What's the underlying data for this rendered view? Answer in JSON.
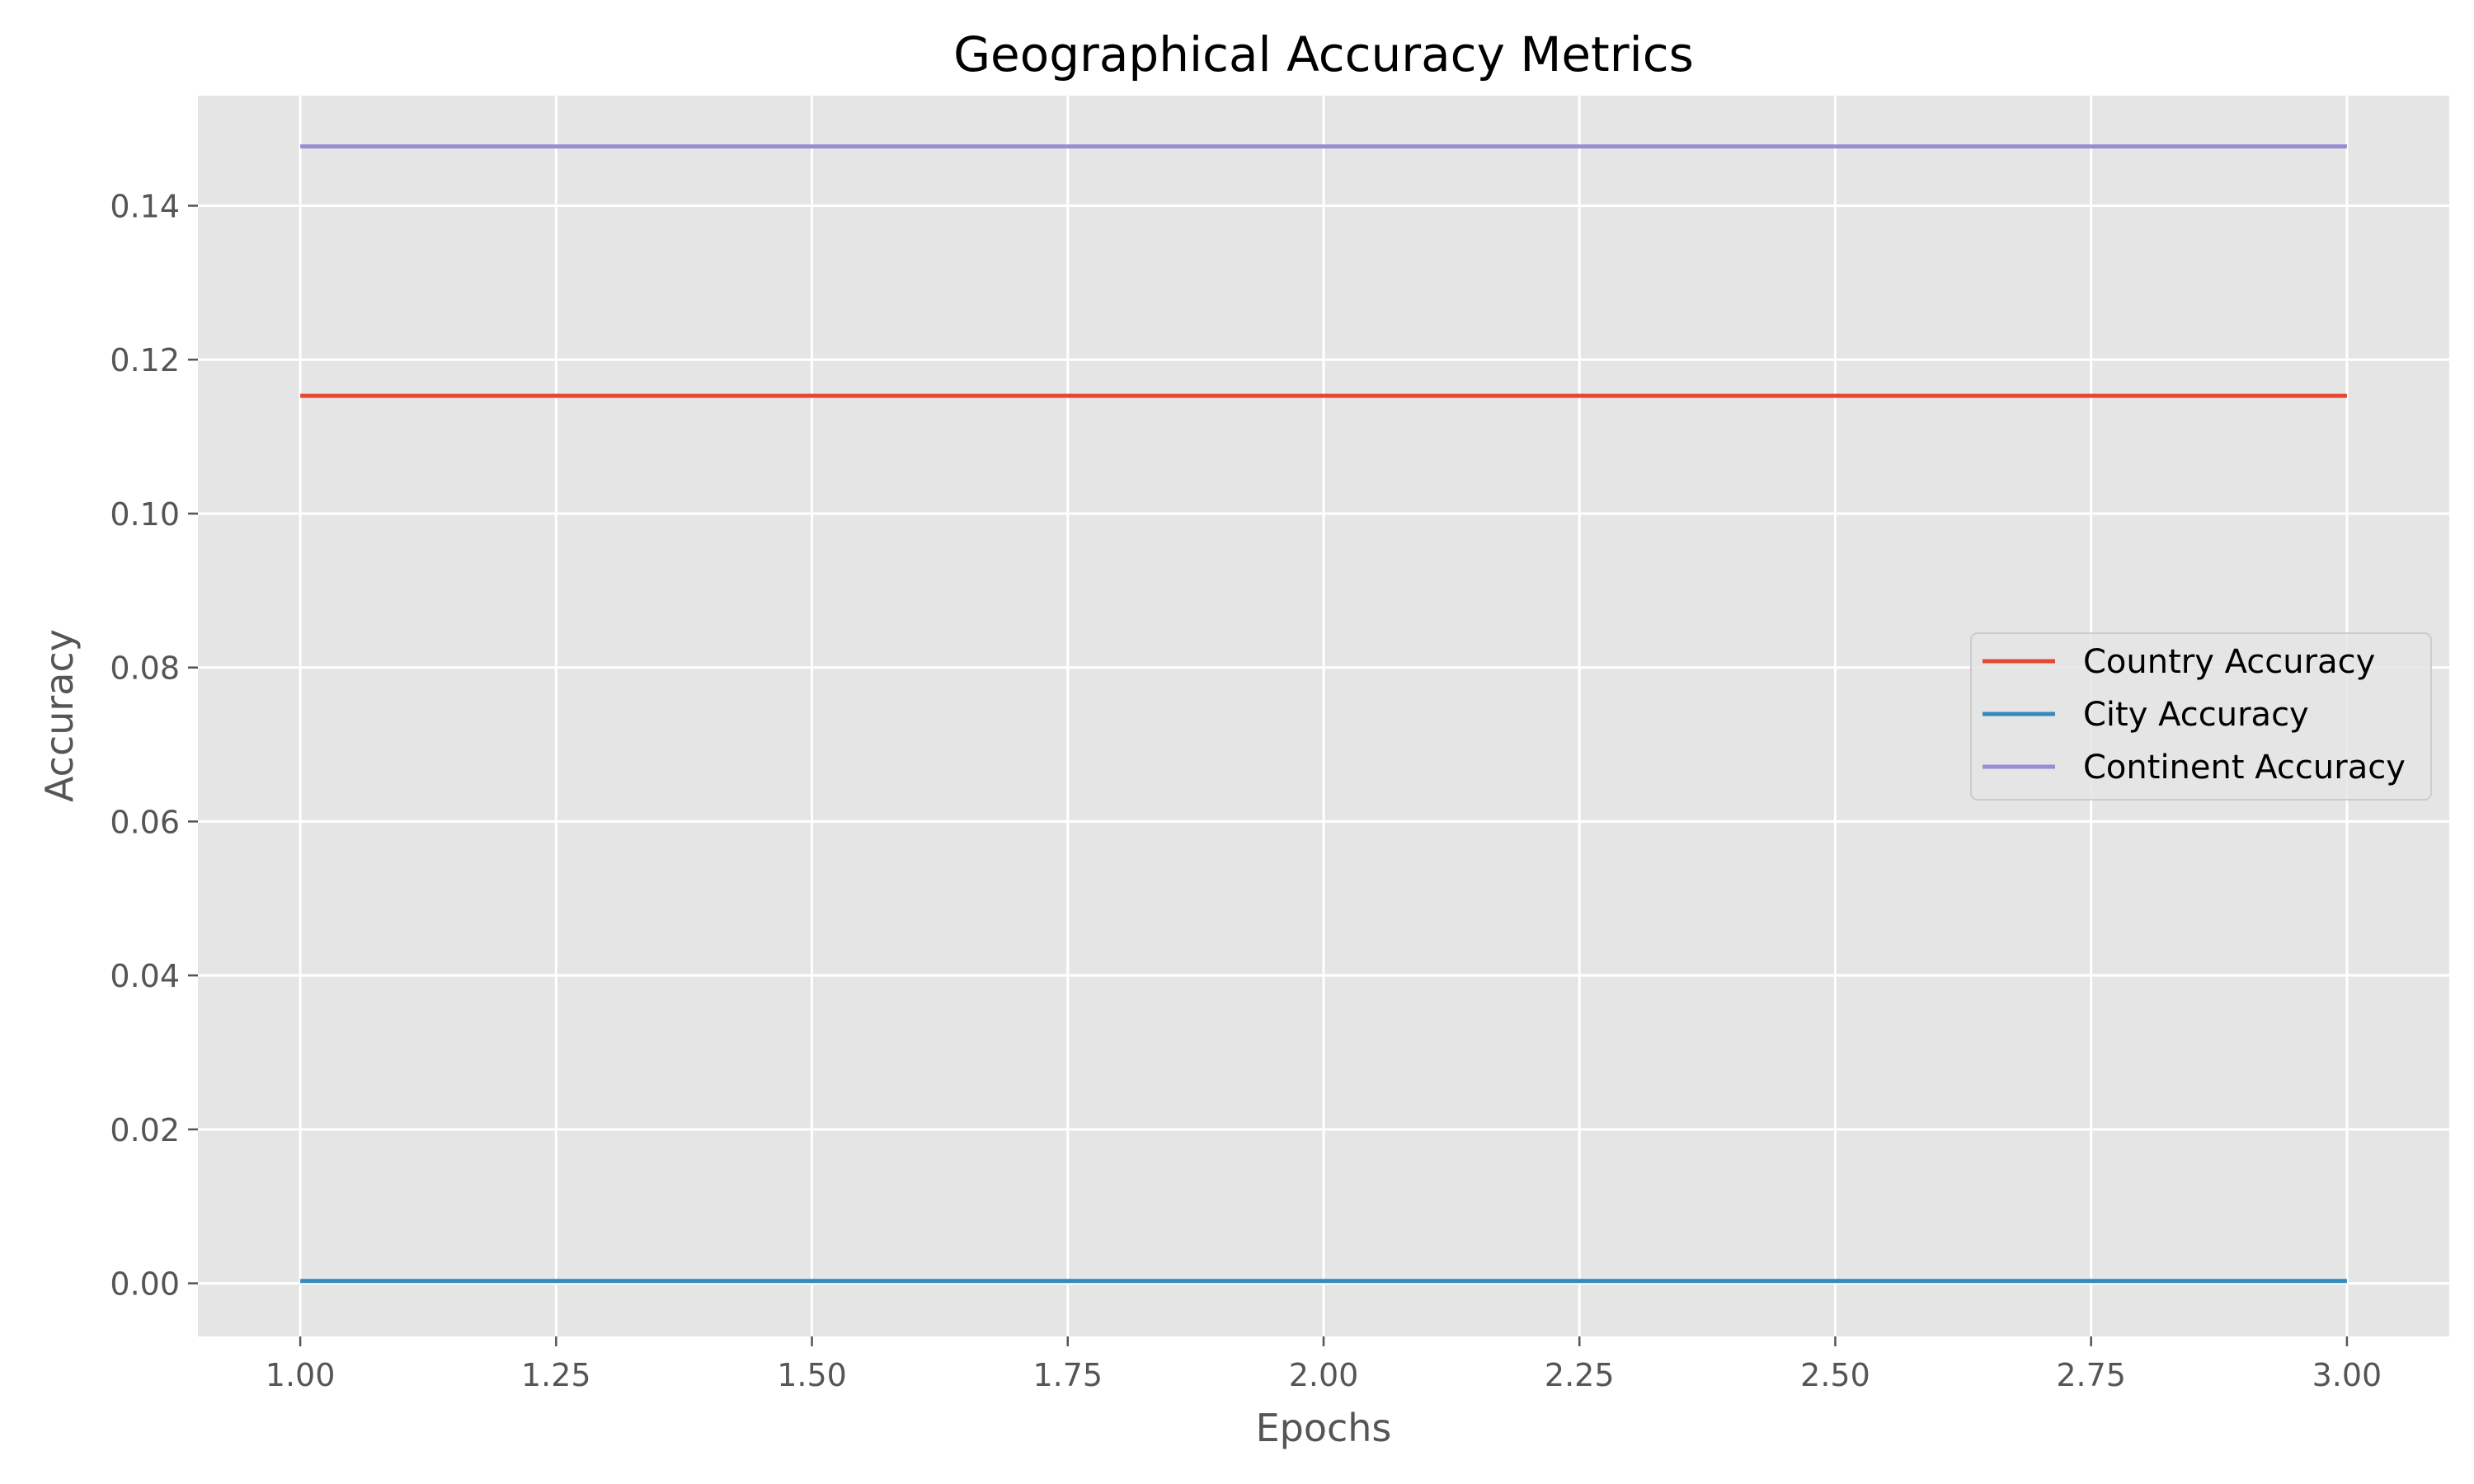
{
  "chart_data": {
    "type": "line",
    "title": "Geographical Accuracy Metrics",
    "xlabel": "Epochs",
    "ylabel": "Accuracy",
    "x": [
      1,
      2,
      3
    ],
    "xlim": [
      0.9,
      3.1
    ],
    "ylim": [
      -0.0069,
      0.1543
    ],
    "xticks": [
      1.0,
      1.25,
      1.5,
      1.75,
      2.0,
      2.25,
      2.5,
      2.75,
      3.0
    ],
    "xtick_labels": [
      "1.00",
      "1.25",
      "1.50",
      "1.75",
      "2.00",
      "2.25",
      "2.50",
      "2.75",
      "3.00"
    ],
    "yticks": [
      0.0,
      0.02,
      0.04,
      0.06,
      0.08,
      0.1,
      0.12,
      0.14
    ],
    "ytick_labels": [
      "0.00",
      "0.02",
      "0.04",
      "0.06",
      "0.08",
      "0.10",
      "0.12",
      "0.14"
    ],
    "grid": true,
    "legend_position": "center-right",
    "series": [
      {
        "name": "Country Accuracy",
        "values": [
          0.1153,
          0.1153,
          0.1153
        ],
        "color": "#E24A33"
      },
      {
        "name": "City Accuracy",
        "values": [
          0.0003,
          0.0003,
          0.0003
        ],
        "color": "#348ABD"
      },
      {
        "name": "Continent Accuracy",
        "values": [
          0.1477,
          0.1477,
          0.1477
        ],
        "color": "#988ED5"
      }
    ],
    "colors": {
      "plot_background": "#E5E5E5",
      "grid": "#FFFFFF",
      "tick_text": "#555555",
      "title_text": "#000000"
    }
  }
}
